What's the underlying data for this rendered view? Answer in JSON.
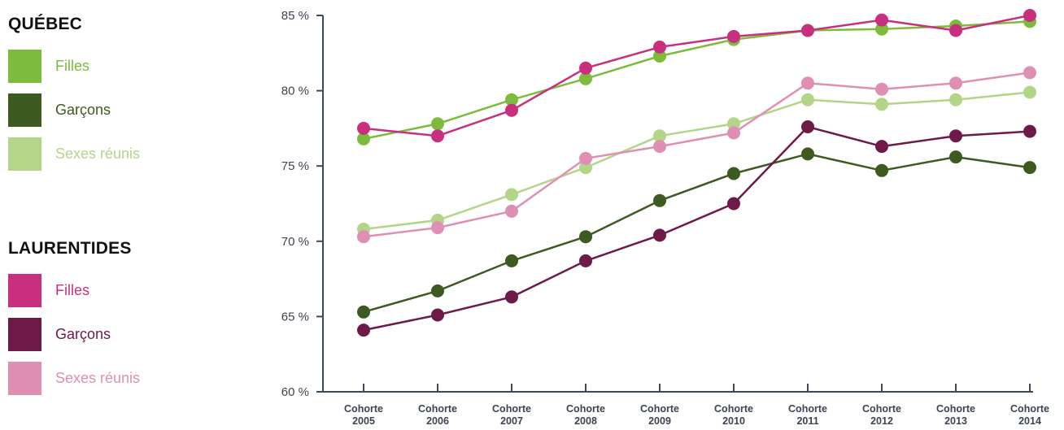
{
  "legend": {
    "groups": [
      {
        "title": "QUÉBEC",
        "items": [
          {
            "label": "Filles",
            "color": "#7dbb3c"
          },
          {
            "label": "Garçons",
            "color": "#3d5a20"
          },
          {
            "label": "Sexes réunis",
            "color": "#b3d587"
          }
        ]
      },
      {
        "title": "LAURENTIDES",
        "items": [
          {
            "label": "Filles",
            "color": "#c8307f"
          },
          {
            "label": "Garçons",
            "color": "#6e1a49"
          },
          {
            "label": "Sexes réunis",
            "color": "#df8fb4"
          }
        ]
      }
    ]
  },
  "chart_data": {
    "type": "line",
    "categories": [
      [
        "Cohorte",
        "2005"
      ],
      [
        "Cohorte",
        "2006"
      ],
      [
        "Cohorte",
        "2007"
      ],
      [
        "Cohorte",
        "2008"
      ],
      [
        "Cohorte",
        "2009"
      ],
      [
        "Cohorte",
        "2010"
      ],
      [
        "Cohorte",
        "2011"
      ],
      [
        "Cohorte",
        "2012"
      ],
      [
        "Cohorte",
        "2013"
      ],
      [
        "Cohorte",
        "2014"
      ]
    ],
    "ylim": [
      60,
      85
    ],
    "yticks": [
      60,
      65,
      70,
      75,
      80,
      85
    ],
    "ytick_labels": [
      "60 %",
      "65 %",
      "70 %",
      "75 %",
      "80 %",
      "85 %"
    ],
    "series": [
      {
        "name": "Sexes réunis",
        "group": "QUÉBEC",
        "color": "#b3d587",
        "values": [
          70.8,
          71.4,
          73.1,
          74.9,
          77.0,
          77.8,
          79.4,
          79.1,
          79.4,
          79.9
        ]
      },
      {
        "name": "Sexes réunis",
        "group": "LAURENTIDES",
        "color": "#df8fb4",
        "values": [
          70.3,
          70.9,
          72.0,
          75.5,
          76.3,
          77.2,
          80.5,
          80.1,
          80.5,
          81.2
        ]
      },
      {
        "name": "Garçons",
        "group": "QUÉBEC",
        "color": "#3d5a20",
        "values": [
          65.3,
          66.7,
          68.7,
          70.3,
          72.7,
          74.5,
          75.8,
          74.7,
          75.6,
          74.9
        ]
      },
      {
        "name": "Garçons",
        "group": "LAURENTIDES",
        "color": "#6e1a49",
        "values": [
          64.1,
          65.1,
          66.3,
          68.7,
          70.4,
          72.5,
          77.6,
          76.3,
          77.0,
          77.3
        ]
      },
      {
        "name": "Filles",
        "group": "QUÉBEC",
        "color": "#7dbb3c",
        "values": [
          76.8,
          77.8,
          79.4,
          80.8,
          82.3,
          83.4,
          84.0,
          84.1,
          84.3,
          84.6
        ]
      },
      {
        "name": "Filles",
        "group": "LAURENTIDES",
        "color": "#c8307f",
        "values": [
          77.5,
          77.0,
          78.7,
          81.5,
          82.9,
          83.6,
          84.0,
          84.7,
          84.0,
          85.0
        ]
      }
    ]
  }
}
